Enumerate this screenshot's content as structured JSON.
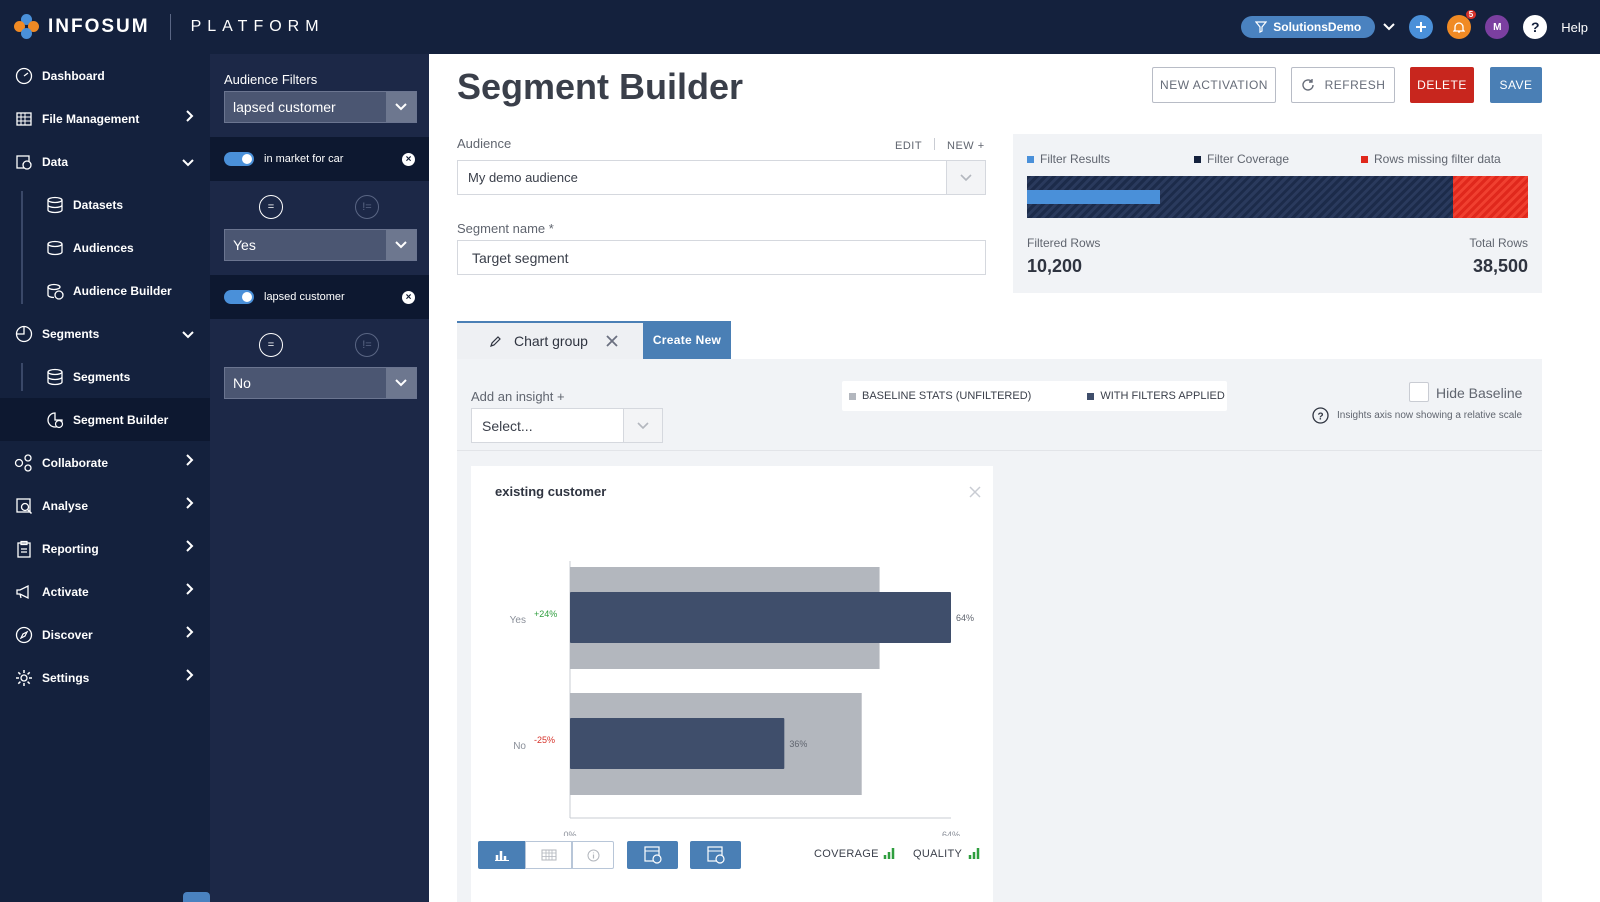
{
  "header": {
    "brand": "INFOSUM",
    "product": "PLATFORM",
    "org": "SolutionsDemo",
    "notification_count": "5",
    "avatar_initial": "M",
    "help": "Help"
  },
  "sidebar": {
    "items": [
      {
        "label": "Dashboard",
        "icon": "dashboard-icon"
      },
      {
        "label": "File Management",
        "icon": "file-icon"
      },
      {
        "label": "Data",
        "icon": "data-icon"
      },
      {
        "label": "Datasets",
        "icon": "database-icon"
      },
      {
        "label": "Audiences",
        "icon": "audiences-icon"
      },
      {
        "label": "Audience Builder",
        "icon": "audience-builder-icon"
      },
      {
        "label": "Segments",
        "icon": "segments-icon"
      },
      {
        "label": "Segments",
        "icon": "database-icon"
      },
      {
        "label": "Segment Builder",
        "icon": "segment-builder-icon"
      },
      {
        "label": "Collaborate",
        "icon": "collaborate-icon"
      },
      {
        "label": "Analyse",
        "icon": "analyse-icon"
      },
      {
        "label": "Reporting",
        "icon": "reporting-icon"
      },
      {
        "label": "Activate",
        "icon": "megaphone-icon"
      },
      {
        "label": "Discover",
        "icon": "compass-icon"
      },
      {
        "label": "Settings",
        "icon": "gear-icon"
      }
    ]
  },
  "filters": {
    "title": "Audience Filters",
    "selected": "lapsed customer",
    "rows": [
      {
        "label": "in market for car",
        "value": "Yes"
      },
      {
        "label": "lapsed customer",
        "value": "No"
      }
    ],
    "op_eq": "=",
    "op_neq": "!="
  },
  "main": {
    "title": "Segment Builder",
    "buttons": {
      "new_activation": "NEW ACTIVATION",
      "refresh": "REFRESH",
      "delete": "DELETE",
      "save": "SAVE"
    },
    "audience_label": "Audience",
    "edit": "EDIT",
    "new": "NEW +",
    "audience_value": "My demo audience",
    "segment_name_label": "Segment name *",
    "segment_name_value": "Target segment",
    "stats": {
      "legend": [
        "Filter Results",
        "Filter Coverage",
        "Rows missing filter data"
      ],
      "filtered_rows_label": "Filtered Rows",
      "filtered_rows": "10,200",
      "total_rows_label": "Total Rows",
      "total_rows": "38,500",
      "filter_results_fraction": 0.265,
      "missing_fraction": 0.15
    },
    "tabs": {
      "active": "Chart group",
      "create": "Create New"
    },
    "insight_label": "Add an insight +",
    "insight_placeholder": "Select...",
    "legend_baseline": "BASELINE STATS (UNFILTERED)",
    "legend_filtered": "WITH FILTERS APPLIED",
    "hide_baseline": "Hide Baseline",
    "relative_note": "Insights axis now showing a relative scale",
    "card": {
      "title": "existing customer",
      "coverage": "COVERAGE",
      "quality": "QUALITY"
    }
  },
  "colors": {
    "navy": "#14213d",
    "accent": "#4a7fb5",
    "danger": "#c8261e",
    "filtered_bar": "#3f4e6b",
    "baseline_bar": "#b3b7be"
  },
  "chart_data": {
    "type": "bar",
    "title": "existing customer",
    "categories": [
      "Yes",
      "No"
    ],
    "series": [
      {
        "name": "BASELINE STATS (UNFILTERED)",
        "values": [
          52,
          49
        ]
      },
      {
        "name": "WITH FILTERS APPLIED",
        "values": [
          64,
          36
        ],
        "labels": [
          "64%",
          "36%"
        ]
      }
    ],
    "deltas": [
      "+24%",
      "-25%"
    ],
    "xlim": [
      0,
      64
    ],
    "xticks": [
      "0%",
      "64%"
    ],
    "orientation": "horizontal"
  }
}
